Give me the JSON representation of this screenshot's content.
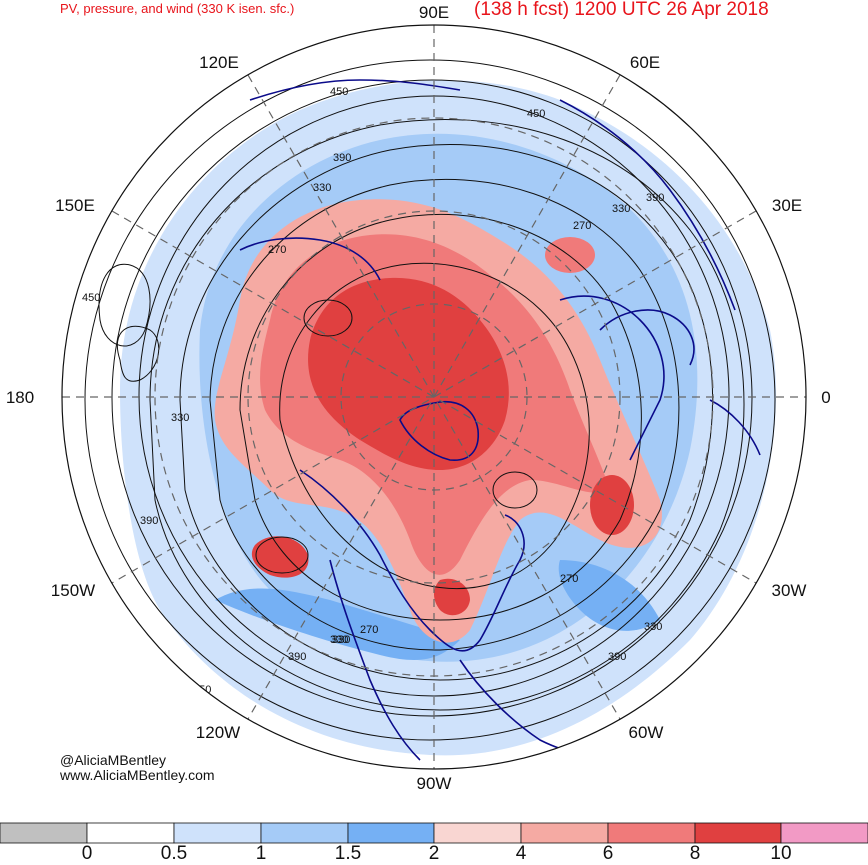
{
  "header": {
    "left_title": "PV, pressure, and wind (330 K isen. sfc.)",
    "right_title": "(138 h fcst) 1200 UTC 26 Apr 2018"
  },
  "longitude_labels": {
    "top": "90E",
    "upper_left": "120E",
    "upper_right": "60E",
    "left_upper": "150E",
    "right_upper": "30E",
    "left": "180",
    "right": "0",
    "left_lower": "150W",
    "right_lower": "30W",
    "lower_left": "120W",
    "lower_right": "60W",
    "bottom": "90W"
  },
  "contour_labels": [
    "450",
    "450",
    "390",
    "390",
    "330",
    "330",
    "270",
    "270",
    "450",
    "330",
    "390",
    "330",
    "270",
    "330",
    "390",
    "330",
    "390",
    "270",
    "450"
  ],
  "credits": {
    "handle": "@AliciaMBentley",
    "website": "www.AliciaMBentley.com"
  },
  "colorbar": {
    "colors": [
      "#c0c0c0",
      "#ffffff",
      "#cfe2fb",
      "#a5cbf7",
      "#75b0f4",
      "#f9d6d2",
      "#f5aaa3",
      "#f07a7a",
      "#e04040",
      "#f29ac5"
    ],
    "tick_labels": [
      "0",
      "0.5",
      "1",
      "1.5",
      "2",
      "4",
      "6",
      "8",
      "10"
    ]
  }
}
